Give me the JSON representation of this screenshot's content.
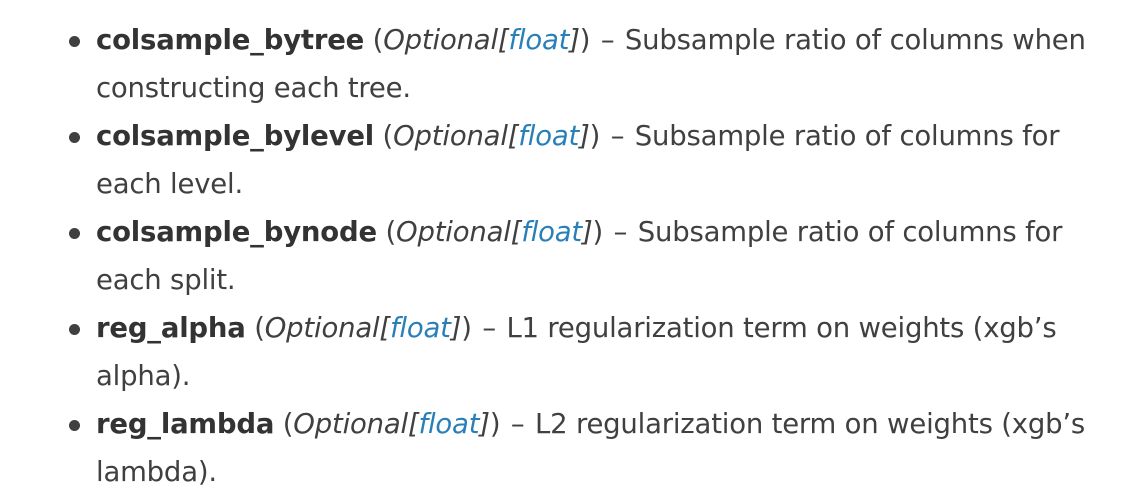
{
  "params": [
    {
      "name": "colsample_bytree",
      "optional": "Optional",
      "type": "float",
      "description": "Subsample ratio of columns when constructing each tree."
    },
    {
      "name": "colsample_bylevel",
      "optional": "Optional",
      "type": "float",
      "description": "Subsample ratio of columns for each level."
    },
    {
      "name": "colsample_bynode",
      "optional": "Optional",
      "type": "float",
      "description": "Subsample ratio of columns for each split."
    },
    {
      "name": "reg_alpha",
      "optional": "Optional",
      "type": "float",
      "description": "L1 regularization term on weights (xgb’s alpha)."
    },
    {
      "name": "reg_lambda",
      "optional": "Optional",
      "type": "float",
      "description": "L2 regularization term on weights (xgb’s lambda)."
    }
  ],
  "colors": {
    "text": "#404040",
    "link": "#2980b9"
  }
}
